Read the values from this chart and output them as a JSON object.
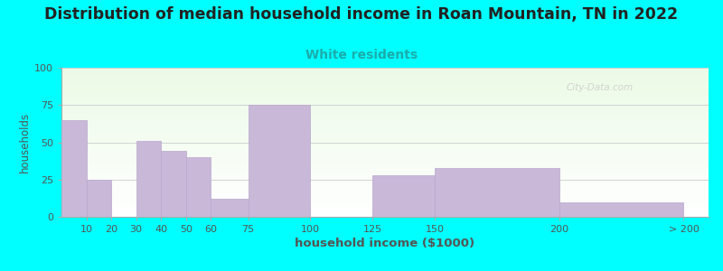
{
  "title": "Distribution of median household income in Roan Mountain, TN in 2022",
  "subtitle": "White residents",
  "xlabel": "household income ($1000)",
  "ylabel": "households",
  "title_fontsize": 12.5,
  "subtitle_fontsize": 10,
  "xlabel_fontsize": 9.5,
  "ylabel_fontsize": 8.5,
  "background_color": "#00FFFF",
  "bar_color": "#c9b8d8",
  "bar_edge_color": "#b8a8cc",
  "categories": [
    "10",
    "20",
    "30",
    "40",
    "50",
    "60",
    "75",
    "100",
    "125",
    "150",
    "200",
    "> 200"
  ],
  "values": [
    65,
    25,
    0,
    51,
    44,
    40,
    12,
    75,
    0,
    28,
    33,
    10
  ],
  "ylim": [
    0,
    100
  ],
  "yticks": [
    0,
    25,
    50,
    75,
    100
  ],
  "bar_lefts": [
    0,
    10,
    20,
    30,
    40,
    50,
    60,
    75,
    100,
    125,
    150,
    200
  ],
  "bar_rights": [
    10,
    20,
    30,
    40,
    50,
    60,
    75,
    100,
    125,
    150,
    200,
    250
  ],
  "tick_positions": [
    10,
    20,
    30,
    40,
    50,
    60,
    75,
    100,
    125,
    150,
    200,
    250
  ],
  "xlim": [
    0,
    260
  ],
  "watermark": "City-Data.com",
  "subtitle_color": "#1aacac",
  "title_color": "#222222",
  "label_color": "#555555",
  "watermark_color": "#cccccc"
}
